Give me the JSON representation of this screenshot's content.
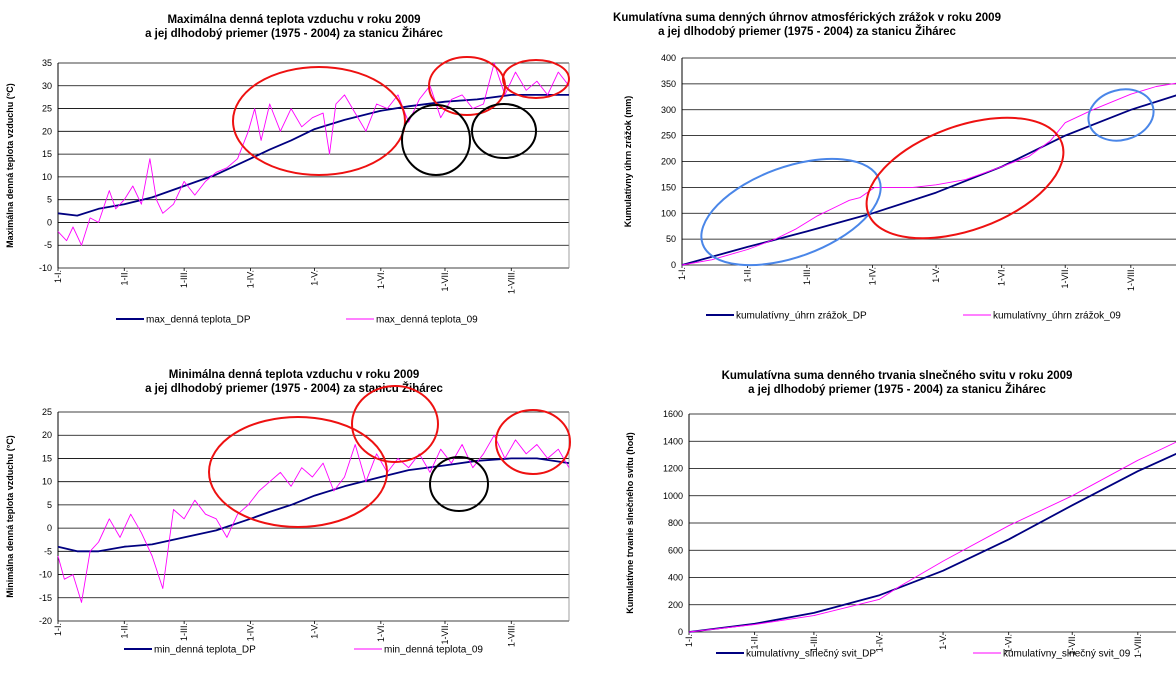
{
  "colors": {
    "dp": "#000080",
    "y09": "#ff00ff",
    "red_ring": "#ee1111",
    "black_ring": "#000000",
    "blue_ring": "#4a86e8"
  },
  "charts": [
    {
      "title1": "Maximálna denná teplota vzduchu v roku 2009",
      "title2": "a jej dlhodobý priemer (1975 - 2004) za stanicu Žihárec",
      "ylabel": "Maximálna denná teplota vzduchu (°C)",
      "y_ticks": [
        "35",
        "30",
        "25",
        "20",
        "15",
        "10",
        "5",
        "0",
        "-5",
        "-10"
      ],
      "x_ticks": [
        "1-I.",
        "1-II.",
        "1-III.",
        "1-IV.",
        "1-V.",
        "1-VI.",
        "1-VII.",
        "1-VIII."
      ],
      "legend_dp": "max_denná teplota_DP",
      "legend_09": "max_denná teplota_09"
    },
    {
      "title1": "Kumulatívna suma denných úhrnov atmosférických zrážok v roku 2009",
      "title2": "a jej dlhodobý priemer (1975 - 2004) za stanicu Žihárec",
      "ylabel": "Kumulatívny úhrn zrážok (mm)",
      "y_ticks": [
        "400",
        "350",
        "300",
        "250",
        "200",
        "150",
        "100",
        "50",
        "0"
      ],
      "x_ticks": [
        "1-I.",
        "1-II.",
        "1-III.",
        "1-IV.",
        "1-V.",
        "1-VI.",
        "1-VII.",
        "1-VIII."
      ],
      "legend_dp": "kumulatívny_úhrn zrážok_DP",
      "legend_09": "kumulatívny_úhrn zrážok_09"
    },
    {
      "title1": "Minimálna denná teplota vzduchu v roku 2009",
      "title2": "a jej dlhodobý priemer (1975 - 2004) za stanicu Žihárec",
      "ylabel": "Minimálna denná teplota vzduchu (°C)",
      "y_ticks": [
        "25",
        "20",
        "15",
        "10",
        "5",
        "0",
        "-5",
        "-10",
        "-15",
        "-20"
      ],
      "x_ticks": [
        "1-I.",
        "1-II.",
        "1-III.",
        "1-IV.",
        "1-V.",
        "1-VI.",
        "1-VII.",
        "1-VIII."
      ],
      "legend_dp": "min_denná teplota_DP",
      "legend_09": "min_denná teplota_09"
    },
    {
      "title1": "Kumulatívna suma denného trvania slnečného svitu v roku 2009",
      "title2": "a jej dlhodobý priemer (1975 - 2004) za stanicu Žihárec",
      "ylabel": "Kumulatívne trvanie slnečného svitu (hod)",
      "y_ticks": [
        "1600",
        "1400",
        "1200",
        "1000",
        "800",
        "600",
        "400",
        "200",
        "0"
      ],
      "x_ticks": [
        "1-I.",
        "1-II.",
        "1-III.",
        "1-IV.",
        "1-V.",
        "1-VI.",
        "1-VII.",
        "1-VIII."
      ],
      "legend_dp": "kumulatívny_slnečný svit_DP",
      "legend_09": "kumulatívny_slnečný svit_09"
    }
  ],
  "chart_data": [
    {
      "type": "line",
      "title": "Maximálna denná teplota vzduchu v roku 2009 a jej dlhodobý priemer (1975 - 2004) za stanicu Žihárec",
      "ylabel": "Maximálna denná teplota vzduchu (°C)",
      "ylim": [
        -10,
        35
      ],
      "x_day_range": [
        1,
        240
      ],
      "grid": true,
      "legend": "bottom",
      "series": [
        {
          "name": "max_denná teplota_DP",
          "x": [
            1,
            10,
            20,
            32,
            45,
            60,
            75,
            91,
            100,
            110,
            121,
            135,
            152,
            165,
            182,
            197,
            213,
            225,
            240
          ],
          "values": [
            2,
            1.5,
            3,
            4,
            5.5,
            8,
            10.5,
            14,
            16,
            18,
            20.5,
            22.5,
            24.5,
            25.5,
            26.5,
            27,
            28,
            28,
            28
          ]
        },
        {
          "name": "max_denná teplota_09",
          "x": [
            1,
            5,
            8,
            12,
            16,
            20,
            25,
            28,
            32,
            36,
            40,
            44,
            47,
            50,
            55,
            60,
            65,
            70,
            75,
            80,
            85,
            90,
            93,
            96,
            100,
            105,
            110,
            115,
            120,
            125,
            128,
            131,
            135,
            140,
            145,
            150,
            155,
            160,
            165,
            170,
            175,
            180,
            185,
            190,
            195,
            200,
            205,
            210,
            215,
            220,
            225,
            230,
            235,
            240
          ],
          "values": [
            -2,
            -4,
            -1,
            -5,
            1,
            0,
            7,
            3,
            5,
            8,
            4,
            14,
            5,
            2,
            4,
            9,
            6,
            9,
            11,
            12,
            14,
            20,
            25,
            18,
            26,
            20,
            25,
            21,
            23,
            24,
            15,
            26,
            28,
            24,
            20,
            26,
            25,
            28,
            22,
            27,
            30,
            23,
            27,
            28,
            25,
            26,
            35,
            28,
            33,
            29,
            31,
            28,
            33,
            30
          ]
        }
      ]
    },
    {
      "type": "line",
      "title": "Kumulatívna suma denných úhrnov atmosférických zrážok v roku 2009 a jej dlhodobý priemer (1975 - 2004) za stanicu Žihárec",
      "ylabel": "Kumulatívny úhrn zrážok (mm)",
      "ylim": [
        0,
        400
      ],
      "x_day_range": [
        1,
        240
      ],
      "grid": true,
      "legend": "bottom",
      "series": [
        {
          "name": "kumulatívny_úhrn zrážok_DP",
          "x": [
            1,
            32,
            60,
            91,
            121,
            152,
            182,
            213,
            240
          ],
          "values": [
            0,
            35,
            65,
            100,
            140,
            190,
            250,
            300,
            335
          ]
        },
        {
          "name": "kumulatívny_úhrn zrážok_09",
          "x": [
            1,
            15,
            32,
            45,
            55,
            65,
            75,
            80,
            85,
            92,
            100,
            110,
            121,
            135,
            152,
            165,
            175,
            182,
            195,
            213,
            225,
            240
          ],
          "values": [
            0,
            10,
            30,
            50,
            70,
            95,
            115,
            125,
            130,
            150,
            150,
            150,
            155,
            165,
            190,
            210,
            240,
            275,
            300,
            330,
            345,
            355
          ]
        }
      ]
    },
    {
      "type": "line",
      "title": "Minimálna denná teplota vzduchu v roku 2009 a jej dlhodobý priemer (1975 - 2004) za stanicu Žihárec",
      "ylabel": "Minimálna denná teplota vzduchu (°C)",
      "ylim": [
        -20,
        25
      ],
      "x_day_range": [
        1,
        240
      ],
      "grid": true,
      "legend": "bottom",
      "series": [
        {
          "name": "min_denná teplota_DP",
          "x": [
            1,
            10,
            20,
            32,
            45,
            60,
            75,
            91,
            100,
            110,
            121,
            135,
            152,
            165,
            182,
            197,
            213,
            225,
            240
          ],
          "values": [
            -4,
            -5,
            -5,
            -4,
            -3.5,
            -2,
            -0.5,
            2,
            3.5,
            5,
            7,
            9,
            11,
            12.5,
            13.5,
            14.5,
            15,
            15,
            14
          ]
        },
        {
          "name": "min_denná teplota_09",
          "x": [
            1,
            4,
            8,
            12,
            16,
            20,
            25,
            30,
            35,
            40,
            45,
            50,
            55,
            60,
            65,
            70,
            75,
            80,
            85,
            90,
            95,
            100,
            105,
            110,
            115,
            120,
            125,
            130,
            135,
            140,
            145,
            150,
            155,
            160,
            165,
            170,
            175,
            180,
            185,
            190,
            195,
            200,
            205,
            210,
            215,
            220,
            225,
            230,
            235,
            240
          ],
          "values": [
            -6,
            -11,
            -10,
            -16,
            -5,
            -3,
            2,
            -2,
            3,
            -1,
            -6,
            -13,
            4,
            2,
            6,
            3,
            2,
            -2,
            3,
            5,
            8,
            10,
            12,
            9,
            13,
            11,
            14,
            8,
            11,
            18,
            10,
            16,
            12,
            15,
            13,
            16,
            12,
            17,
            14,
            18,
            13,
            16,
            20,
            15,
            19,
            16,
            18,
            15,
            17,
            13
          ]
        }
      ]
    },
    {
      "type": "line",
      "title": "Kumulatívna suma denného trvania slnečného svitu v roku 2009 a jej dlhodobý priemer (1975 - 2004) za stanicu Žihárec",
      "ylabel": "Kumulatívne trvanie slnečného svitu (hod)",
      "ylim": [
        0,
        1600
      ],
      "x_day_range": [
        1,
        240
      ],
      "grid": true,
      "legend": "bottom",
      "series": [
        {
          "name": "kumulatívny_slnečný svit_DP",
          "x": [
            1,
            32,
            60,
            91,
            121,
            152,
            182,
            213,
            240
          ],
          "values": [
            0,
            60,
            140,
            270,
            450,
            680,
            930,
            1180,
            1370
          ]
        },
        {
          "name": "kumulatívny_slnečný svit_09",
          "x": [
            1,
            32,
            60,
            91,
            100,
            121,
            152,
            182,
            213,
            240
          ],
          "values": [
            0,
            55,
            120,
            240,
            330,
            520,
            780,
            1000,
            1260,
            1460
          ]
        }
      ]
    }
  ]
}
